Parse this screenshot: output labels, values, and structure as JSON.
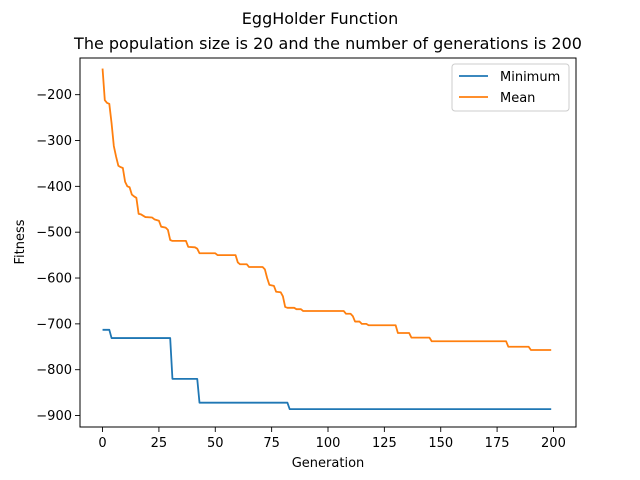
{
  "chart_data": {
    "type": "line",
    "title": "EggHolder Function",
    "subtitle": "The population size is 20 and the number of generations is 200",
    "xlabel": "Generation",
    "ylabel": "Fitness",
    "xlim": [
      -10,
      210
    ],
    "ylim": [
      -925,
      -120
    ],
    "xticks": [
      0,
      25,
      50,
      75,
      100,
      125,
      150,
      175,
      200
    ],
    "xtick_labels": [
      "0",
      "25",
      "50",
      "75",
      "100",
      "125",
      "150",
      "175",
      "200"
    ],
    "yticks": [
      -900,
      -800,
      -700,
      -600,
      -500,
      -400,
      -300,
      -200
    ],
    "ytick_labels": [
      "−900",
      "−800",
      "−700",
      "−600",
      "−500",
      "−400",
      "−300",
      "−200"
    ],
    "legend_position": "top-right",
    "grid": false,
    "series": [
      {
        "name": "Minimum",
        "color": "#1f77b4",
        "points": [
          [
            0,
            -713
          ],
          [
            3,
            -713
          ],
          [
            4,
            -731
          ],
          [
            30,
            -731
          ],
          [
            31,
            -820
          ],
          [
            42,
            -820
          ],
          [
            43,
            -872
          ],
          [
            82,
            -872
          ],
          [
            83,
            -886
          ],
          [
            199,
            -886
          ]
        ]
      },
      {
        "name": "Mean",
        "color": "#ff7f0e",
        "points": [
          [
            0,
            -143
          ],
          [
            1,
            -212
          ],
          [
            2,
            -218
          ],
          [
            3,
            -220
          ],
          [
            4,
            -262
          ],
          [
            5,
            -312
          ],
          [
            6,
            -335
          ],
          [
            7,
            -355
          ],
          [
            8,
            -358
          ],
          [
            9,
            -360
          ],
          [
            10,
            -390
          ],
          [
            11,
            -400
          ],
          [
            12,
            -402
          ],
          [
            13,
            -418
          ],
          [
            14,
            -422
          ],
          [
            15,
            -425
          ],
          [
            16,
            -460
          ],
          [
            17,
            -461
          ],
          [
            18,
            -464
          ],
          [
            19,
            -467
          ],
          [
            22,
            -468
          ],
          [
            23,
            -472
          ],
          [
            25,
            -475
          ],
          [
            26,
            -488
          ],
          [
            28,
            -490
          ],
          [
            29,
            -495
          ],
          [
            30,
            -517
          ],
          [
            31,
            -519
          ],
          [
            37,
            -519
          ],
          [
            38,
            -532
          ],
          [
            41,
            -533
          ],
          [
            42,
            -536
          ],
          [
            43,
            -546
          ],
          [
            50,
            -546
          ],
          [
            51,
            -550
          ],
          [
            59,
            -550
          ],
          [
            60,
            -566
          ],
          [
            61,
            -570
          ],
          [
            64,
            -570
          ],
          [
            65,
            -576
          ],
          [
            71,
            -576
          ],
          [
            72,
            -581
          ],
          [
            73,
            -600
          ],
          [
            74,
            -615
          ],
          [
            76,
            -617
          ],
          [
            77,
            -630
          ],
          [
            79,
            -631
          ],
          [
            80,
            -640
          ],
          [
            81,
            -663
          ],
          [
            82,
            -665
          ],
          [
            85,
            -665
          ],
          [
            86,
            -668
          ],
          [
            88,
            -668
          ],
          [
            89,
            -672
          ],
          [
            107,
            -672
          ],
          [
            108,
            -678
          ],
          [
            110,
            -678
          ],
          [
            111,
            -683
          ],
          [
            112,
            -695
          ],
          [
            114,
            -695
          ],
          [
            115,
            -700
          ],
          [
            117,
            -700
          ],
          [
            118,
            -703
          ],
          [
            130,
            -703
          ],
          [
            131,
            -720
          ],
          [
            136,
            -720
          ],
          [
            137,
            -730
          ],
          [
            145,
            -730
          ],
          [
            146,
            -738
          ],
          [
            179,
            -738
          ],
          [
            180,
            -750
          ],
          [
            189,
            -750
          ],
          [
            190,
            -757
          ],
          [
            199,
            -757
          ]
        ]
      }
    ]
  }
}
